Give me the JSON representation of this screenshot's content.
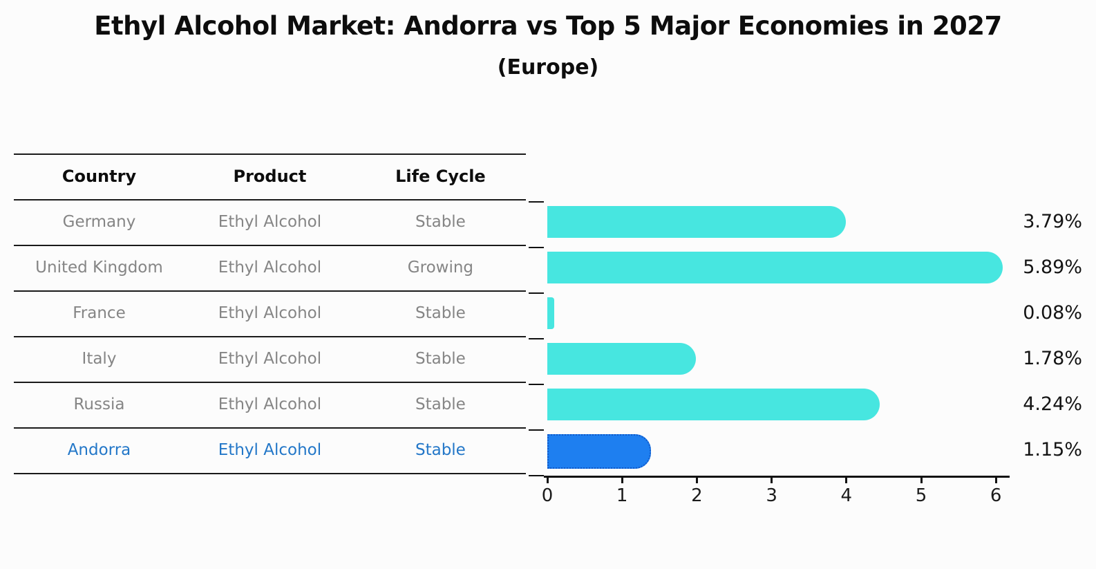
{
  "title": "Ethyl Alcohol Market: Andorra vs Top 5 Major Economies in 2027",
  "subtitle": "(Europe)",
  "table": {
    "headers": [
      "Country",
      "Product",
      "Life Cycle"
    ],
    "rows": [
      {
        "country": "Germany",
        "product": "Ethyl Alcohol",
        "life_cycle": "Stable",
        "highlight": false
      },
      {
        "country": "United Kingdom",
        "product": "Ethyl Alcohol",
        "life_cycle": "Growing",
        "highlight": false
      },
      {
        "country": "France",
        "product": "Ethyl Alcohol",
        "life_cycle": "Stable",
        "highlight": false
      },
      {
        "country": "Italy",
        "product": "Ethyl Alcohol",
        "life_cycle": "Stable",
        "highlight": false
      },
      {
        "country": "Russia",
        "product": "Ethyl Alcohol",
        "life_cycle": "Stable",
        "highlight": false
      },
      {
        "country": "Andorra",
        "product": "Ethyl Alcohol",
        "life_cycle": "Stable",
        "highlight": true
      }
    ]
  },
  "chart_data": {
    "type": "bar",
    "orientation": "horizontal",
    "title": "Ethyl Alcohol Market: Andorra vs Top 5 Major Economies in 2027 (Europe)",
    "categories": [
      "Germany",
      "United Kingdom",
      "France",
      "Italy",
      "Russia",
      "Andorra"
    ],
    "values": [
      3.79,
      5.89,
      0.08,
      1.78,
      4.24,
      1.15
    ],
    "value_labels": [
      "3.79%",
      "5.89%",
      "0.08%",
      "1.78%",
      "4.24%",
      "1.15%"
    ],
    "highlight_index": 5,
    "x_ticks": [
      0,
      1,
      2,
      3,
      4,
      5,
      6
    ],
    "xlim": [
      0,
      6.2
    ],
    "grid": false,
    "legend": "none",
    "bar_color": "#47E6E0",
    "highlight_bar_color": "#1E7FF0",
    "highlight_border_color": "#1058C8"
  },
  "colors": {
    "background": "#fcfcfc",
    "table_text_gray": "#858585",
    "highlight_text_blue": "#2377c8",
    "line_black": "#1a1a1a"
  }
}
